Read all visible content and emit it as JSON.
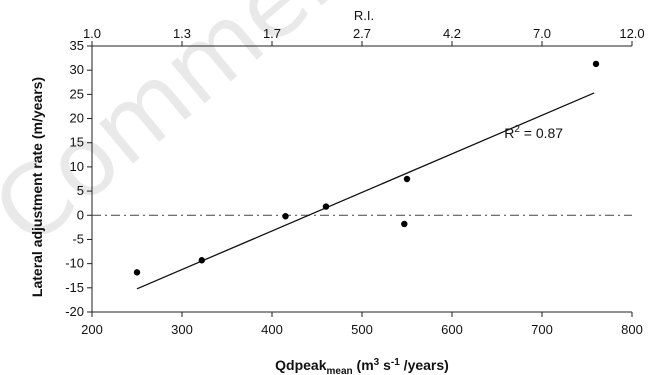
{
  "watermark": "Commercial use",
  "chart_data": {
    "type": "scatter",
    "ylabel": "Lateral adjustment rate (m/years)",
    "xlabel_parts": {
      "base": "Qdpeak",
      "base_sub": "mean",
      "unit_open": " (m",
      "unit_sup1": "3",
      "unit_mid": " s",
      "unit_sup2": "-1",
      "unit_close": " /years)"
    },
    "top_axis": {
      "title": "R.I.",
      "tick_labels": [
        "1.0",
        "1.3",
        "1.7",
        "2.7",
        "4.2",
        "7.0",
        "12.0"
      ]
    },
    "xlim": [
      200,
      800
    ],
    "ylim": [
      -20,
      35
    ],
    "x_ticks": [
      200,
      300,
      400,
      500,
      600,
      700,
      800
    ],
    "y_ticks": [
      -20,
      -15,
      -10,
      -5,
      0,
      5,
      10,
      15,
      20,
      25,
      30,
      35
    ],
    "points": [
      {
        "x": 250,
        "y": -11.8
      },
      {
        "x": 322,
        "y": -9.3
      },
      {
        "x": 415,
        "y": -0.2
      },
      {
        "x": 460,
        "y": 1.8
      },
      {
        "x": 547,
        "y": -1.8
      },
      {
        "x": 550,
        "y": 7.5
      },
      {
        "x": 760,
        "y": 31.3
      }
    ],
    "trendline": {
      "x": [
        250,
        758
      ],
      "y": [
        -15.2,
        25.3
      ]
    },
    "zero_line": {
      "y": 0,
      "style": "dash-dot"
    },
    "annotation": {
      "text_base": "R",
      "text_sup": "2",
      "text_rest": " = 0.87",
      "x": 658,
      "y": 16
    },
    "grid": false
  }
}
